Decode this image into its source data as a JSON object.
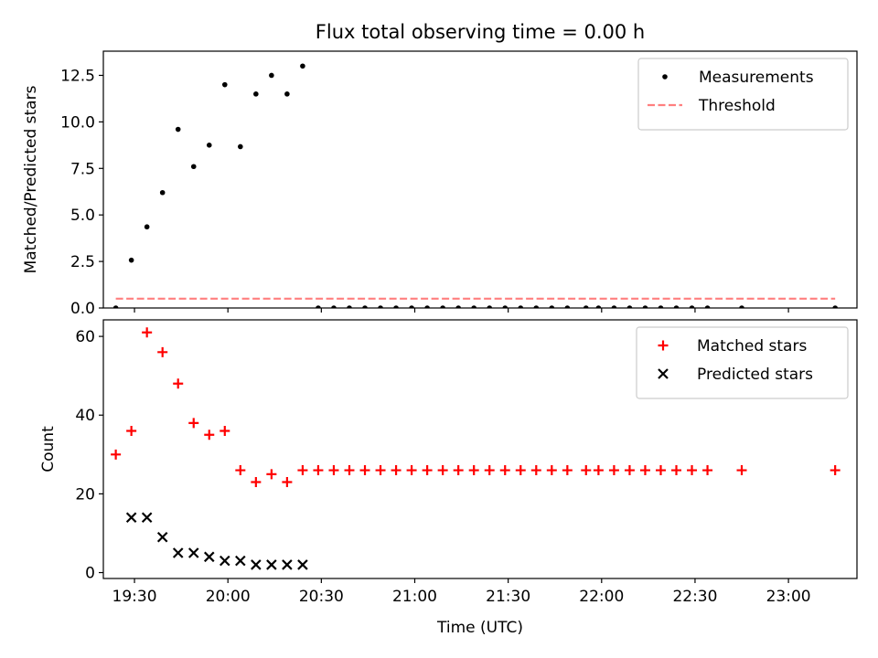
{
  "figure": {
    "title": "Flux total observing time = 0.00 h"
  },
  "chart_data": [
    {
      "type": "scatter",
      "panel": "top",
      "ylabel": "Matched/Predicted stars",
      "xlabel": "",
      "x_unit": "minutes after 00:00 UTC",
      "xlim": [
        "19:20",
        "23:22"
      ],
      "ylim": [
        0,
        13.8
      ],
      "yticks": [
        0.0,
        2.5,
        5.0,
        7.5,
        10.0,
        12.5
      ],
      "ytick_labels": [
        "0.0",
        "2.5",
        "5.0",
        "7.5",
        "10.0",
        "12.5"
      ],
      "xticks": [
        "19:30",
        "20:00",
        "20:30",
        "21:00",
        "21:30",
        "22:00",
        "22:30",
        "23:00"
      ],
      "xtick_labels": [
        "",
        "",
        "",
        "",
        "",
        "",
        "",
        ""
      ],
      "grid": false,
      "legend": {
        "placement": "top-right"
      },
      "series": [
        {
          "name": "Measurements",
          "kind": "points",
          "marker": "dot",
          "color": "#000000",
          "x": [
            "19:24",
            "19:29",
            "19:34",
            "19:39",
            "19:44",
            "19:49",
            "19:54",
            "19:59",
            "20:04",
            "20:09",
            "20:14",
            "20:19",
            "20:24",
            "20:29",
            "20:34",
            "20:39",
            "20:44",
            "20:49",
            "20:54",
            "20:59",
            "21:04",
            "21:09",
            "21:14",
            "21:19",
            "21:24",
            "21:29",
            "21:34",
            "21:39",
            "21:44",
            "21:49",
            "21:55",
            "21:59",
            "22:04",
            "22:09",
            "22:14",
            "22:19",
            "22:24",
            "22:29",
            "22:34",
            "22:45",
            "23:15"
          ],
          "y": [
            0,
            2.57,
            4.36,
            6.2,
            9.6,
            7.6,
            8.75,
            12.0,
            8.67,
            11.5,
            12.5,
            11.5,
            13.0,
            0,
            0,
            0,
            0,
            0,
            0,
            0,
            0,
            0,
            0,
            0,
            0,
            0,
            0,
            0,
            0,
            0,
            0,
            0,
            0,
            0,
            0,
            0,
            0,
            0,
            0,
            0,
            0
          ]
        },
        {
          "name": "Threshold",
          "kind": "line",
          "linestyle": "dashed",
          "color": "#ff7f7f",
          "x": [
            "19:24",
            "23:15"
          ],
          "y": [
            0.5,
            0.5
          ]
        }
      ]
    },
    {
      "type": "scatter",
      "panel": "bottom",
      "ylabel": "Count",
      "xlabel": "Time (UTC)",
      "x_unit": "minutes after 00:00 UTC",
      "xlim": [
        "19:20",
        "23:22"
      ],
      "ylim": [
        -1.5,
        64.2
      ],
      "yticks": [
        0,
        20,
        40,
        60
      ],
      "ytick_labels": [
        "0",
        "20",
        "40",
        "60"
      ],
      "xticks": [
        "19:30",
        "20:00",
        "20:30",
        "21:00",
        "21:30",
        "22:00",
        "22:30",
        "23:00"
      ],
      "xtick_labels": [
        "19:30",
        "20:00",
        "20:30",
        "21:00",
        "21:30",
        "22:00",
        "22:30",
        "23:00"
      ],
      "grid": false,
      "legend": {
        "placement": "top-right"
      },
      "series": [
        {
          "name": "Matched stars",
          "kind": "points",
          "marker": "plus",
          "color": "#ff0000",
          "x": [
            "19:24",
            "19:29",
            "19:34",
            "19:39",
            "19:44",
            "19:49",
            "19:54",
            "19:59",
            "20:04",
            "20:09",
            "20:14",
            "20:19",
            "20:24",
            "20:29",
            "20:34",
            "20:39",
            "20:44",
            "20:49",
            "20:54",
            "20:59",
            "21:04",
            "21:09",
            "21:14",
            "21:19",
            "21:24",
            "21:29",
            "21:34",
            "21:39",
            "21:44",
            "21:49",
            "21:55",
            "21:59",
            "22:04",
            "22:09",
            "22:14",
            "22:19",
            "22:24",
            "22:29",
            "22:34",
            "22:45",
            "23:15"
          ],
          "y": [
            30,
            36,
            61,
            56,
            48,
            38,
            35,
            36,
            26,
            23,
            25,
            23,
            26,
            26,
            26,
            26,
            26,
            26,
            26,
            26,
            26,
            26,
            26,
            26,
            26,
            26,
            26,
            26,
            26,
            26,
            26,
            26,
            26,
            26,
            26,
            26,
            26,
            26,
            26,
            26,
            26
          ]
        },
        {
          "name": "Predicted stars",
          "kind": "points",
          "marker": "x",
          "color": "#000000",
          "x": [
            "19:29",
            "19:34",
            "19:39",
            "19:44",
            "19:49",
            "19:54",
            "19:59",
            "20:04",
            "20:09",
            "20:14",
            "20:19",
            "20:24"
          ],
          "y": [
            14,
            14,
            9,
            5,
            5,
            4,
            3,
            3,
            2,
            2,
            2,
            2
          ]
        }
      ]
    }
  ]
}
